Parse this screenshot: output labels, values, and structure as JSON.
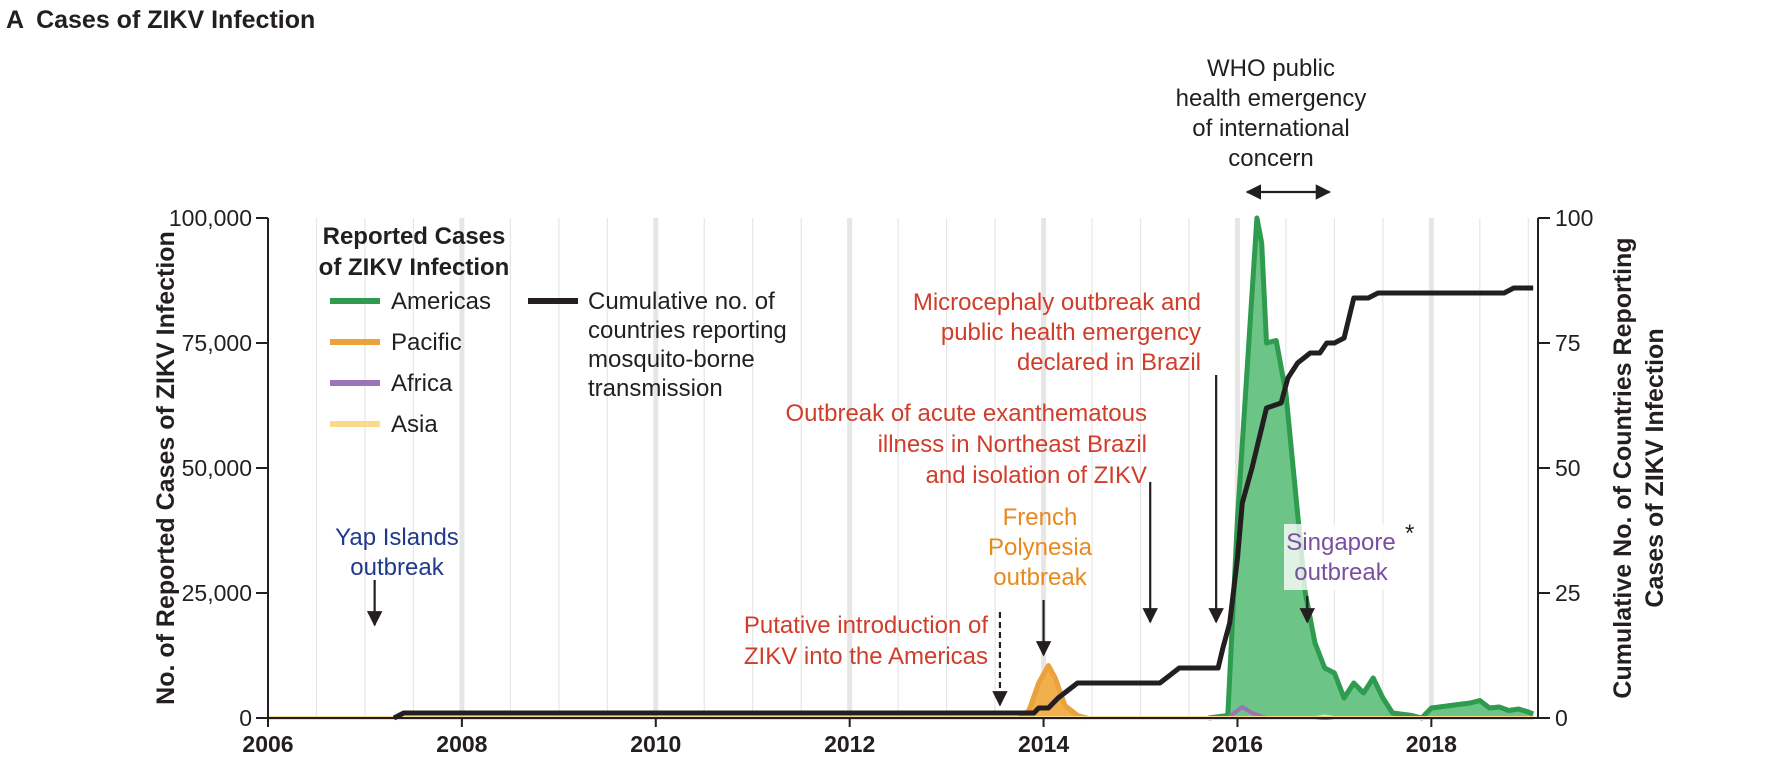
{
  "panel_title": {
    "letter": "A",
    "text": "Cases of ZIKV Infection"
  },
  "colors": {
    "americas": "#2e9b4e",
    "americas_fill": "#6cc486",
    "pacific": "#eba13c",
    "pacific_fill": "#f2b04d",
    "africa": "#9b74b5",
    "asia": "#fbd98b",
    "cumulative": "#231f20",
    "annotation_red": "#d03d2a",
    "annotation_blue": "#1f3a8a",
    "annotation_orange": "#e8891c",
    "annotation_purple": "#7b4ea0",
    "gridline": "#e6e6e6"
  },
  "legend": {
    "title_lines": [
      "Reported Cases",
      "of ZIKV Infection"
    ],
    "items": [
      {
        "key": "americas",
        "label": "Americas"
      },
      {
        "key": "pacific",
        "label": "Pacific"
      },
      {
        "key": "africa",
        "label": "Africa"
      },
      {
        "key": "asia",
        "label": "Asia"
      }
    ],
    "cumulative_lines": [
      "Cumulative no. of",
      "countries reporting",
      "mosquito-borne",
      "transmission"
    ]
  },
  "chart_data": {
    "type": "area",
    "title": "Cases of ZIKV Infection",
    "xlabel": "",
    "ylabel_left": "No. of  Reported Cases of ZIKV Infection",
    "ylabel_right_lines": [
      "Cumulative No. of Countries Reporting",
      "Cases of ZIKV Infection"
    ],
    "xlim": [
      2006,
      2019.1
    ],
    "ylim_left": [
      0,
      100000
    ],
    "ylim_right": [
      0,
      100
    ],
    "x_ticks": [
      2006,
      2008,
      2010,
      2012,
      2014,
      2016,
      2018
    ],
    "x_tick_labels": [
      "2006",
      "2008",
      "2010",
      "2012",
      "2014",
      "2016",
      "2018"
    ],
    "y_left_ticks": [
      0,
      25000,
      50000,
      75000,
      100000
    ],
    "y_left_tick_labels": [
      "0",
      "25,000",
      "50,000",
      "75,000",
      "100,000"
    ],
    "y_right_ticks": [
      0,
      25,
      50,
      75,
      100
    ],
    "y_right_tick_labels": [
      "0",
      "25",
      "50",
      "75",
      "100"
    ],
    "series": [
      {
        "name": "Americas",
        "axis": "left",
        "kind": "area",
        "points": [
          [
            2015.7,
            0
          ],
          [
            2015.9,
            500
          ],
          [
            2016.0,
            40000
          ],
          [
            2016.1,
            70000
          ],
          [
            2016.2,
            100000
          ],
          [
            2016.25,
            95000
          ],
          [
            2016.3,
            75000
          ],
          [
            2016.4,
            75500
          ],
          [
            2016.5,
            65000
          ],
          [
            2016.6,
            45000
          ],
          [
            2016.7,
            25000
          ],
          [
            2016.8,
            15000
          ],
          [
            2016.9,
            10000
          ],
          [
            2017.0,
            9000
          ],
          [
            2017.1,
            4000
          ],
          [
            2017.2,
            7000
          ],
          [
            2017.3,
            5000
          ],
          [
            2017.4,
            8000
          ],
          [
            2017.5,
            4000
          ],
          [
            2017.6,
            1000
          ],
          [
            2017.8,
            500
          ],
          [
            2017.9,
            0
          ],
          [
            2018.0,
            2000
          ],
          [
            2018.2,
            2500
          ],
          [
            2018.4,
            3000
          ],
          [
            2018.5,
            3500
          ],
          [
            2018.6,
            2000
          ],
          [
            2018.7,
            2200
          ],
          [
            2018.8,
            1500
          ],
          [
            2018.9,
            1800
          ],
          [
            2019.0,
            1200
          ],
          [
            2019.05,
            800
          ]
        ]
      },
      {
        "name": "Pacific",
        "axis": "left",
        "kind": "area",
        "points": [
          [
            2013.75,
            0
          ],
          [
            2013.85,
            1500
          ],
          [
            2013.95,
            7000
          ],
          [
            2014.05,
            10500
          ],
          [
            2014.12,
            8000
          ],
          [
            2014.22,
            2500
          ],
          [
            2014.35,
            500
          ],
          [
            2014.45,
            0
          ]
        ]
      },
      {
        "name": "Africa",
        "axis": "left",
        "kind": "line",
        "points": [
          [
            2015.8,
            0
          ],
          [
            2015.9,
            0
          ],
          [
            2016.0,
            1500
          ],
          [
            2016.05,
            2200
          ],
          [
            2016.15,
            1000
          ],
          [
            2016.3,
            0
          ],
          [
            2019.05,
            0
          ]
        ]
      },
      {
        "name": "Asia",
        "axis": "left",
        "kind": "line",
        "points": [
          [
            2006,
            0
          ],
          [
            2016.8,
            0
          ],
          [
            2016.9,
            300
          ],
          [
            2017.0,
            0
          ],
          [
            2019.05,
            0
          ]
        ]
      },
      {
        "name": "Cumulative no. of countries reporting mosquito-borne transmission",
        "axis": "right",
        "kind": "step",
        "points": [
          [
            2007.3,
            0
          ],
          [
            2007.4,
            1
          ],
          [
            2013.9,
            1
          ],
          [
            2013.95,
            2
          ],
          [
            2014.05,
            2
          ],
          [
            2014.15,
            4
          ],
          [
            2014.35,
            7
          ],
          [
            2015.2,
            7
          ],
          [
            2015.4,
            10
          ],
          [
            2015.8,
            10
          ],
          [
            2015.85,
            14
          ],
          [
            2015.92,
            19
          ],
          [
            2016.0,
            32
          ],
          [
            2016.05,
            43
          ],
          [
            2016.15,
            50
          ],
          [
            2016.3,
            62
          ],
          [
            2016.45,
            63
          ],
          [
            2016.52,
            68
          ],
          [
            2016.62,
            71
          ],
          [
            2016.75,
            73
          ],
          [
            2016.85,
            73
          ],
          [
            2016.92,
            75
          ],
          [
            2017.0,
            75
          ],
          [
            2017.1,
            76
          ],
          [
            2017.2,
            84
          ],
          [
            2017.35,
            84
          ],
          [
            2017.45,
            85
          ],
          [
            2018.75,
            85
          ],
          [
            2018.85,
            86
          ],
          [
            2019.05,
            86
          ]
        ]
      }
    ],
    "annotations": [
      {
        "key": "yap",
        "lines": [
          "Yap Islands",
          "outbreak"
        ],
        "color": "annotation_blue",
        "arrow_x": 2007.1,
        "arrow_style": "solid"
      },
      {
        "key": "putative",
        "lines": [
          "Putative introduction of",
          "ZIKV into the Americas"
        ],
        "color": "annotation_red",
        "arrow_x": 2013.55,
        "arrow_style": "dashed"
      },
      {
        "key": "french",
        "lines": [
          "French",
          "Polynesia",
          "outbreak"
        ],
        "color": "annotation_orange",
        "arrow_x": 2014.0,
        "arrow_style": "solid"
      },
      {
        "key": "brazil_outbreak",
        "lines": [
          "Outbreak of acute exanthematous",
          "illness in Northeast Brazil",
          "and isolation of ZIKV"
        ],
        "color": "annotation_red",
        "arrow_x": 2015.1,
        "arrow_style": "solid"
      },
      {
        "key": "microcephaly",
        "lines": [
          "Microcephaly outbreak and",
          "public health emergency",
          "declared in Brazil"
        ],
        "color": "annotation_red",
        "arrow_x": 2015.78,
        "arrow_style": "solid"
      },
      {
        "key": "singapore",
        "lines": [
          "Singapore",
          "outbreak"
        ],
        "suffix": "*",
        "color": "annotation_purple",
        "arrow_x": 2016.72,
        "arrow_style": "solid"
      },
      {
        "key": "who",
        "lines": [
          "WHO public",
          "health emergency",
          "of international",
          "concern"
        ],
        "color": "cumulative",
        "range": [
          2016.1,
          2016.95
        ],
        "arrow_style": "double"
      }
    ]
  }
}
